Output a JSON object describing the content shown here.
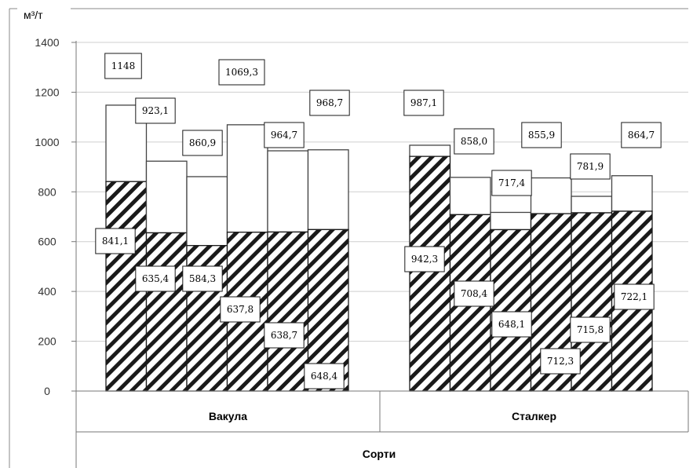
{
  "chart_data": {
    "type": "bar",
    "ylabel": "м³/т",
    "xlabel": "Сорти",
    "ylim": [
      0,
      1400
    ],
    "yticks": [
      0,
      200,
      400,
      600,
      800,
      1000,
      1200,
      1400
    ],
    "groups": [
      "Вакула",
      "Сталкер"
    ],
    "bars_per_group": 6,
    "series": [
      {
        "fill": "hatched",
        "values": [
          841.1,
          635.4,
          584.3,
          637.8,
          638.7,
          648.4,
          942.3,
          708.4,
          648.1,
          712.3,
          715.8,
          722.1
        ],
        "labels": [
          "841,1",
          "635,4",
          "584,3",
          "637,8",
          "638,7",
          "648,4",
          "942,3",
          "708,4",
          "648,1",
          "712,3",
          "715,8",
          "722,1"
        ]
      },
      {
        "fill": "white",
        "values": [
          1148,
          923.1,
          860.9,
          1069.3,
          964.7,
          968.7,
          987.1,
          858.0,
          717.4,
          855.9,
          781.9,
          864.7
        ],
        "labels": [
          "1148",
          "923,1",
          "860,9",
          "1069,3",
          "964,7",
          "968,7",
          "987,1",
          "858,0",
          "717,4",
          "855,9",
          "781,9",
          "864,7"
        ]
      }
    ],
    "grid": true,
    "legend": "none"
  }
}
